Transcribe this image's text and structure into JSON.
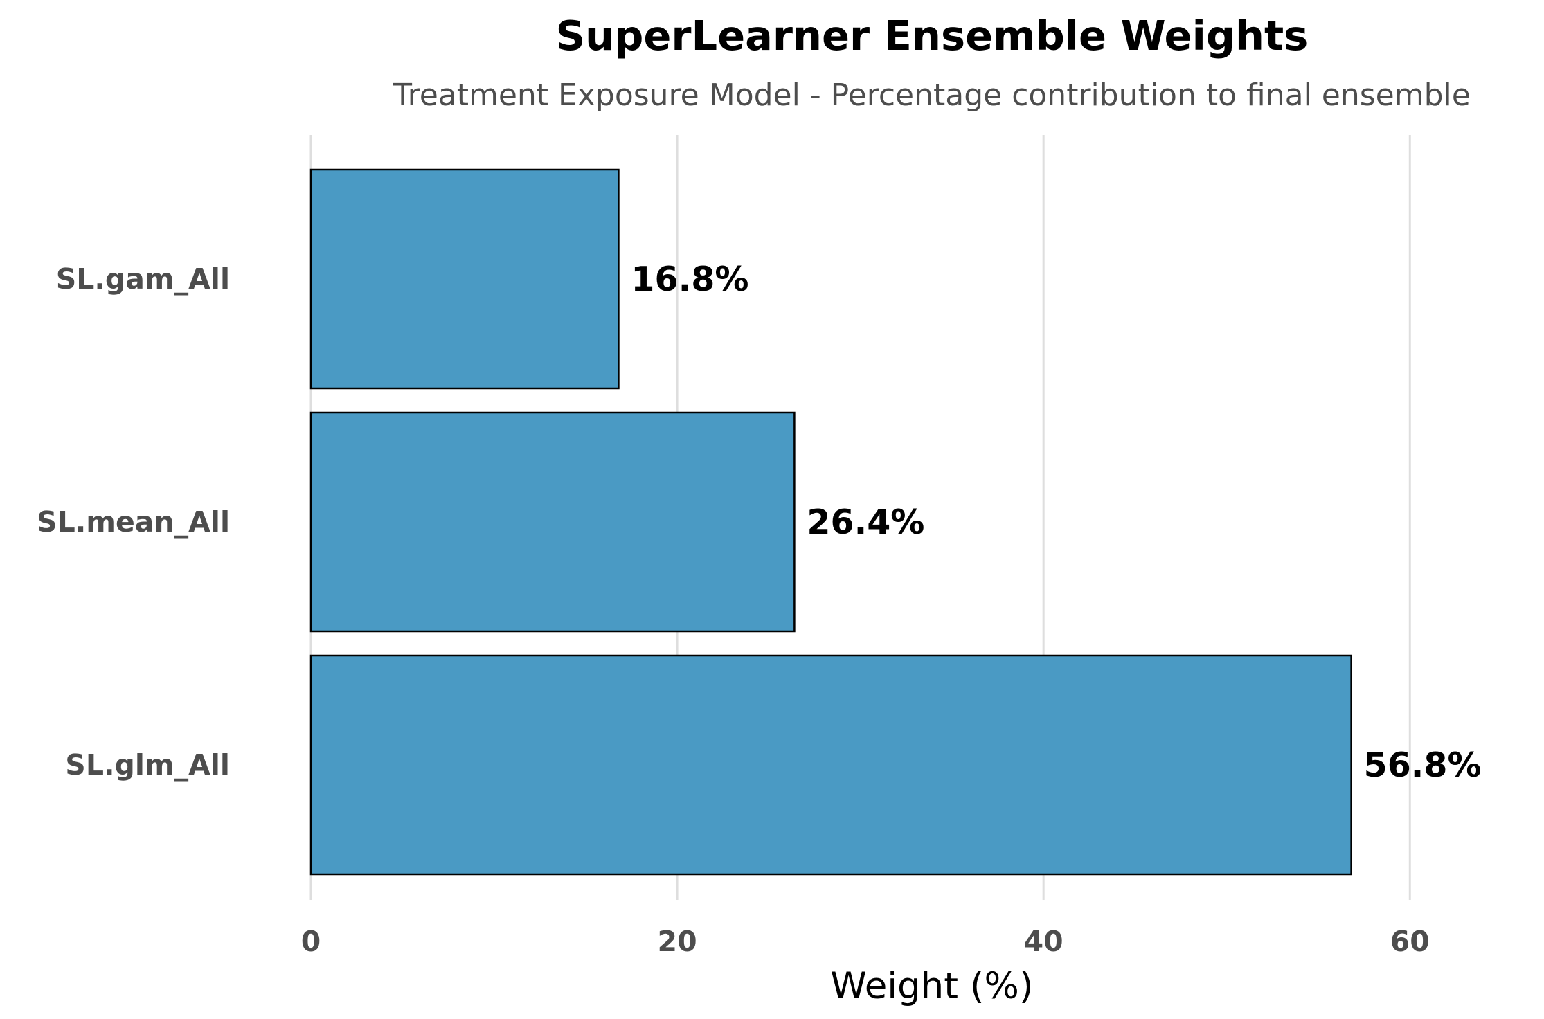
{
  "chart_data": {
    "type": "bar",
    "orientation": "horizontal",
    "title": "SuperLearner Ensemble Weights",
    "subtitle": "Treatment Exposure Model - Percentage contribution to final ensemble",
    "xlabel": "Weight (%)",
    "ylabel": "",
    "categories": [
      "SL.gam_All",
      "SL.mean_All",
      "SL.glm_All"
    ],
    "values": [
      16.8,
      26.4,
      56.8
    ],
    "value_labels": [
      "16.8%",
      "26.4%",
      "56.8%"
    ],
    "xlim": [
      0,
      66
    ],
    "xticks": [
      0,
      20,
      40,
      60
    ],
    "xtick_labels": [
      "0",
      "20",
      "40",
      "60"
    ],
    "grid": "vertical",
    "legend": "none",
    "bar_color": "#4a9ac4",
    "bar_edge_color": "#000000"
  }
}
